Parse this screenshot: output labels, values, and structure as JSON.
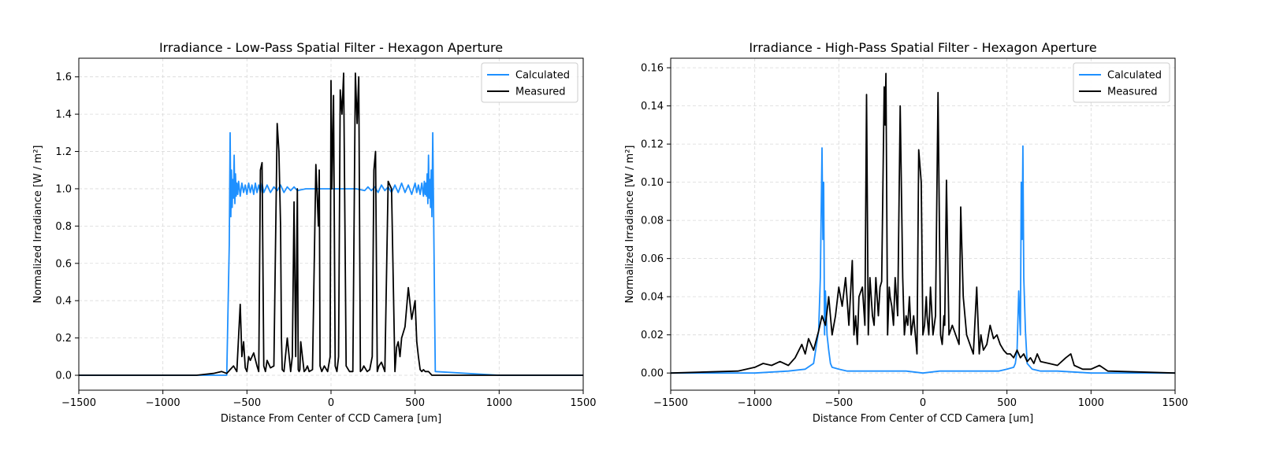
{
  "chart_data": [
    {
      "type": "line",
      "title": "Irradiance - Low-Pass Spatial Filter - Hexagon Aperture",
      "xlabel": "Distance From Center of CCD Camera [um]",
      "ylabel": "Normalized Irradiance [W / m²]",
      "xlim": [
        -1500,
        1500
      ],
      "ylim": [
        -0.08,
        1.7
      ],
      "xticks": [
        -1500,
        -1000,
        -500,
        0,
        500,
        1000,
        1500
      ],
      "xtick_labels": [
        "−1500",
        "−1000",
        "−500",
        "0",
        "500",
        "1000",
        "1500"
      ],
      "yticks": [
        0,
        0.2,
        0.4,
        0.6,
        0.8,
        1.0,
        1.2,
        1.4,
        1.6
      ],
      "ytick_labels": [
        "0.0",
        "0.2",
        "0.4",
        "0.6",
        "0.8",
        "1.0",
        "1.2",
        "1.4",
        "1.6"
      ],
      "grid": true,
      "legend_position": "top-right",
      "series": [
        {
          "name": "Calculated",
          "color": "#1e90ff",
          "x": [
            -1500,
            -1000,
            -620,
            -605,
            -600,
            -596,
            -592,
            -588,
            -584,
            -580,
            -576,
            -572,
            -568,
            -564,
            -560,
            -555,
            -550,
            -540,
            -530,
            -520,
            -510,
            -500,
            -490,
            -480,
            -470,
            -460,
            -450,
            -440,
            -430,
            -420,
            -410,
            -400,
            -380,
            -360,
            -340,
            -320,
            -300,
            -280,
            -260,
            -240,
            -220,
            -200,
            -150,
            -100,
            -50,
            0,
            50,
            100,
            150,
            200,
            220,
            240,
            260,
            280,
            300,
            320,
            340,
            360,
            380,
            400,
            420,
            440,
            460,
            480,
            500,
            510,
            520,
            530,
            540,
            550,
            555,
            560,
            564,
            568,
            572,
            576,
            580,
            584,
            588,
            592,
            596,
            600,
            605,
            620,
            1000,
            1500
          ],
          "y": [
            0.0,
            0.0,
            0.0,
            0.7,
            1.3,
            0.85,
            1.1,
            0.9,
            1.05,
            0.95,
            1.18,
            0.92,
            1.08,
            0.96,
            1.03,
            0.97,
            1.04,
            0.96,
            1.03,
            0.98,
            1.02,
            0.97,
            1.03,
            0.98,
            1.02,
            0.97,
            1.03,
            0.98,
            1.02,
            0.98,
            1.03,
            0.98,
            1.02,
            0.98,
            1.01,
            0.99,
            1.02,
            0.98,
            1.01,
            0.99,
            1.01,
            0.99,
            1.0,
            1.0,
            1.0,
            1.0,
            1.0,
            1.0,
            1.0,
            0.99,
            1.01,
            0.99,
            1.01,
            0.98,
            1.02,
            0.99,
            1.01,
            0.98,
            1.02,
            0.98,
            1.03,
            0.98,
            1.02,
            0.97,
            1.03,
            0.98,
            1.02,
            0.97,
            1.03,
            0.96,
            1.04,
            0.97,
            1.03,
            0.96,
            1.08,
            0.92,
            1.18,
            0.95,
            1.05,
            0.9,
            1.1,
            0.85,
            1.3,
            0.02,
            0.0,
            0.0
          ]
        },
        {
          "name": "Measured",
          "color": "#000000",
          "x": [
            -1500,
            -800,
            -700,
            -650,
            -620,
            -600,
            -580,
            -560,
            -540,
            -530,
            -520,
            -510,
            -500,
            -490,
            -480,
            -460,
            -440,
            -430,
            -420,
            -410,
            -400,
            -390,
            -380,
            -360,
            -340,
            -320,
            -310,
            -300,
            -295,
            -290,
            -280,
            -260,
            -240,
            -230,
            -220,
            -210,
            -200,
            -195,
            -190,
            -185,
            -180,
            -170,
            -160,
            -150,
            -140,
            -130,
            -110,
            -90,
            -75,
            -70,
            -65,
            -55,
            -40,
            -20,
            -5,
            0,
            5,
            15,
            25,
            35,
            45,
            55,
            65,
            75,
            90,
            110,
            130,
            145,
            155,
            165,
            175,
            185,
            195,
            215,
            230,
            245,
            255,
            265,
            275,
            285,
            300,
            320,
            340,
            360,
            380,
            390,
            400,
            410,
            420,
            440,
            460,
            480,
            500,
            510,
            520,
            530,
            540,
            550,
            560,
            580,
            600,
            650,
            700,
            800,
            1000,
            1500
          ],
          "y": [
            0.0,
            0.0,
            0.01,
            0.02,
            0.01,
            0.03,
            0.05,
            0.02,
            0.38,
            0.1,
            0.18,
            0.04,
            0.02,
            0.1,
            0.08,
            0.12,
            0.05,
            0.02,
            1.1,
            1.14,
            0.05,
            0.02,
            0.08,
            0.04,
            0.05,
            1.35,
            1.2,
            0.8,
            0.2,
            0.03,
            0.02,
            0.2,
            0.02,
            0.1,
            0.93,
            0.1,
            1.0,
            0.03,
            0.02,
            0.03,
            0.18,
            0.1,
            0.02,
            0.03,
            0.05,
            0.02,
            0.03,
            1.13,
            0.8,
            1.1,
            0.05,
            0.02,
            0.05,
            0.02,
            0.1,
            1.58,
            1.0,
            1.5,
            0.05,
            0.02,
            0.1,
            1.53,
            1.4,
            1.62,
            0.05,
            0.02,
            0.02,
            1.62,
            1.35,
            1.6,
            0.02,
            0.03,
            0.05,
            0.02,
            0.03,
            0.1,
            1.1,
            1.2,
            0.02,
            0.05,
            0.07,
            0.02,
            1.04,
            1.0,
            0.02,
            0.15,
            0.18,
            0.1,
            0.2,
            0.26,
            0.47,
            0.3,
            0.4,
            0.18,
            0.1,
            0.03,
            0.02,
            0.03,
            0.02,
            0.02,
            0.0,
            0.0,
            0.0,
            0.0,
            0.0,
            0.0
          ]
        }
      ]
    },
    {
      "type": "line",
      "title": "Irradiance - High-Pass Spatial Filter - Hexagon Aperture",
      "xlabel": "Distance From Center of CCD Camera [um]",
      "ylabel": "Normalized Irradiance [W / m²]",
      "xlim": [
        -1500,
        1500
      ],
      "ylim": [
        -0.009,
        0.165
      ],
      "xticks": [
        -1500,
        -1000,
        -500,
        0,
        500,
        1000,
        1500
      ],
      "xtick_labels": [
        "−1500",
        "−1000",
        "−500",
        "0",
        "500",
        "1000",
        "1500"
      ],
      "yticks": [
        0,
        0.02,
        0.04,
        0.06,
        0.08,
        0.1,
        0.12,
        0.14,
        0.16
      ],
      "ytick_labels": [
        "0.00",
        "0.02",
        "0.04",
        "0.06",
        "0.08",
        "0.10",
        "0.12",
        "0.14",
        "0.16"
      ],
      "grid": true,
      "legend_position": "top-right",
      "series": [
        {
          "name": "Calculated",
          "color": "#1e90ff",
          "x": [
            -1500,
            -1000,
            -800,
            -700,
            -650,
            -620,
            -610,
            -600,
            -595,
            -590,
            -585,
            -580,
            -570,
            -560,
            -550,
            -540,
            -500,
            -450,
            -400,
            -300,
            -200,
            -100,
            0,
            100,
            200,
            300,
            400,
            450,
            500,
            540,
            550,
            560,
            570,
            580,
            585,
            590,
            595,
            600,
            610,
            620,
            650,
            700,
            800,
            1000,
            1500
          ],
          "y": [
            0.0,
            0.0,
            0.001,
            0.002,
            0.005,
            0.022,
            0.05,
            0.118,
            0.07,
            0.1,
            0.02,
            0.043,
            0.02,
            0.012,
            0.005,
            0.003,
            0.002,
            0.001,
            0.001,
            0.001,
            0.001,
            0.001,
            0.0,
            0.001,
            0.001,
            0.001,
            0.001,
            0.001,
            0.002,
            0.003,
            0.005,
            0.012,
            0.043,
            0.02,
            0.1,
            0.07,
            0.119,
            0.05,
            0.022,
            0.005,
            0.002,
            0.001,
            0.001,
            0.0,
            0.0
          ]
        },
        {
          "name": "Measured",
          "color": "#000000",
          "x": [
            -1500,
            -1100,
            -1000,
            -950,
            -900,
            -850,
            -800,
            -760,
            -720,
            -700,
            -680,
            -650,
            -620,
            -600,
            -580,
            -560,
            -540,
            -520,
            -500,
            -480,
            -460,
            -440,
            -420,
            -410,
            -400,
            -390,
            -380,
            -360,
            -345,
            -335,
            -325,
            -315,
            -300,
            -290,
            -280,
            -265,
            -255,
            -245,
            -230,
            -225,
            -220,
            -210,
            -200,
            -195,
            -185,
            -175,
            -165,
            -150,
            -135,
            -120,
            -110,
            -100,
            -90,
            -80,
            -70,
            -55,
            -45,
            -35,
            -25,
            -10,
            0,
            10,
            20,
            25,
            35,
            45,
            60,
            75,
            90,
            105,
            115,
            125,
            130,
            140,
            155,
            175,
            195,
            215,
            225,
            240,
            260,
            280,
            300,
            320,
            335,
            345,
            360,
            380,
            400,
            420,
            440,
            460,
            480,
            500,
            520,
            540,
            560,
            580,
            600,
            620,
            640,
            660,
            680,
            700,
            750,
            800,
            850,
            880,
            900,
            950,
            1000,
            1050,
            1100,
            1500
          ],
          "y": [
            0.0,
            0.001,
            0.003,
            0.005,
            0.004,
            0.006,
            0.004,
            0.008,
            0.015,
            0.01,
            0.018,
            0.012,
            0.022,
            0.03,
            0.025,
            0.04,
            0.02,
            0.03,
            0.045,
            0.035,
            0.05,
            0.025,
            0.059,
            0.02,
            0.03,
            0.015,
            0.04,
            0.045,
            0.025,
            0.146,
            0.02,
            0.05,
            0.03,
            0.025,
            0.05,
            0.03,
            0.045,
            0.048,
            0.15,
            0.13,
            0.157,
            0.02,
            0.045,
            0.04,
            0.035,
            0.025,
            0.05,
            0.03,
            0.14,
            0.05,
            0.02,
            0.03,
            0.025,
            0.04,
            0.02,
            0.03,
            0.02,
            0.01,
            0.117,
            0.1,
            0.02,
            0.025,
            0.04,
            0.03,
            0.02,
            0.045,
            0.02,
            0.03,
            0.147,
            0.02,
            0.015,
            0.03,
            0.025,
            0.101,
            0.02,
            0.025,
            0.02,
            0.015,
            0.087,
            0.04,
            0.02,
            0.015,
            0.01,
            0.045,
            0.01,
            0.02,
            0.012,
            0.015,
            0.025,
            0.018,
            0.02,
            0.015,
            0.012,
            0.01,
            0.01,
            0.008,
            0.012,
            0.008,
            0.01,
            0.006,
            0.008,
            0.005,
            0.01,
            0.006,
            0.005,
            0.004,
            0.008,
            0.01,
            0.004,
            0.002,
            0.002,
            0.004,
            0.001,
            0.0
          ]
        }
      ]
    }
  ]
}
